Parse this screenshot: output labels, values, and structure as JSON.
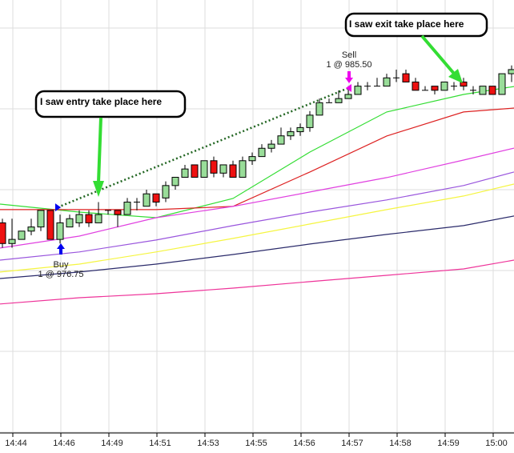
{
  "chart_data": {
    "type": "candlestick",
    "title": "",
    "xlabel": "",
    "ylabel": "",
    "ylim": [
      970.9,
      992.0
    ],
    "grid": true,
    "x_ticks": [
      {
        "label": "14:44",
        "index": 1
      },
      {
        "label": "14:46",
        "index": 6
      },
      {
        "label": "14:49",
        "index": 11
      },
      {
        "label": "14:51",
        "index": 16
      },
      {
        "label": "14:53",
        "index": 21
      },
      {
        "label": "14:55",
        "index": 26
      },
      {
        "label": "14:56",
        "index": 31
      },
      {
        "label": "14:57",
        "index": 36
      },
      {
        "label": "14:58",
        "index": 41
      },
      {
        "label": "14:59",
        "index": 46
      },
      {
        "label": "15:00",
        "index": 51
      }
    ],
    "candles_ohlc": [
      [
        977.75,
        978.0,
        976.25,
        976.5
      ],
      [
        976.5,
        978.0,
        976.25,
        976.75
      ],
      [
        976.75,
        977.25,
        976.75,
        977.25
      ],
      [
        977.25,
        978.0,
        977.0,
        977.5
      ],
      [
        977.5,
        978.5,
        977.25,
        978.5
      ],
      [
        978.5,
        978.5,
        976.75,
        976.75
      ],
      [
        976.75,
        978.25,
        976.5,
        977.75
      ],
      [
        977.5,
        978.25,
        977.5,
        978.0
      ],
      [
        977.75,
        978.5,
        977.5,
        978.25
      ],
      [
        978.25,
        978.5,
        977.5,
        977.75
      ],
      [
        977.75,
        979.0,
        977.75,
        978.25
      ],
      [
        978.5,
        978.5,
        978.25,
        978.5
      ],
      [
        978.5,
        978.5,
        977.5,
        978.25
      ],
      [
        978.25,
        979.25,
        978.25,
        979.0
      ],
      [
        979.0,
        979.25,
        978.5,
        979.0
      ],
      [
        978.75,
        979.75,
        978.75,
        979.5
      ],
      [
        979.5,
        979.5,
        978.75,
        979.0
      ],
      [
        979.25,
        980.25,
        979.0,
        980.0
      ],
      [
        980.0,
        980.5,
        979.75,
        980.5
      ],
      [
        980.5,
        981.25,
        980.5,
        981.0
      ],
      [
        981.25,
        981.25,
        980.5,
        980.5
      ],
      [
        980.5,
        981.5,
        980.5,
        981.5
      ],
      [
        981.5,
        981.75,
        980.5,
        980.75
      ],
      [
        980.75,
        981.25,
        980.5,
        981.25
      ],
      [
        981.25,
        981.5,
        980.5,
        980.5
      ],
      [
        980.5,
        981.75,
        980.5,
        981.5
      ],
      [
        981.5,
        982.0,
        981.25,
        981.75
      ],
      [
        981.75,
        982.5,
        981.75,
        982.25
      ],
      [
        982.25,
        982.75,
        982.0,
        982.5
      ],
      [
        982.5,
        983.5,
        982.5,
        983.0
      ],
      [
        983.0,
        983.5,
        982.75,
        983.25
      ],
      [
        983.25,
        983.75,
        983.0,
        983.5
      ],
      [
        983.5,
        984.5,
        983.25,
        984.25
      ],
      [
        984.25,
        985.25,
        984.25,
        985.0
      ],
      [
        985.0,
        985.25,
        985.0,
        985.0
      ],
      [
        985.0,
        985.75,
        985.0,
        985.25
      ],
      [
        985.25,
        986.0,
        985.25,
        985.5
      ],
      [
        985.5,
        986.25,
        985.5,
        986.0
      ],
      [
        986.0,
        986.25,
        985.75,
        986.0
      ],
      [
        986.0,
        986.5,
        986.0,
        986.0
      ],
      [
        986.0,
        986.75,
        986.0,
        986.5
      ],
      [
        986.5,
        987.0,
        986.25,
        986.5
      ],
      [
        986.75,
        987.0,
        986.25,
        986.25
      ],
      [
        986.25,
        986.5,
        985.75,
        985.75
      ],
      [
        985.75,
        986.0,
        985.75,
        985.75
      ],
      [
        986.0,
        986.0,
        985.5,
        985.75
      ],
      [
        985.75,
        986.25,
        985.75,
        986.25
      ],
      [
        986.0,
        986.25,
        985.75,
        986.0
      ],
      [
        986.25,
        986.5,
        985.75,
        986.0
      ],
      [
        985.75,
        986.0,
        985.5,
        985.75
      ],
      [
        985.5,
        986.0,
        985.5,
        986.0
      ],
      [
        986.0,
        986.0,
        985.5,
        985.5
      ],
      [
        985.5,
        986.75,
        985.5,
        986.75
      ],
      [
        986.75,
        987.25,
        986.25,
        987.0
      ]
    ],
    "moving_averages": {
      "x_index": [
        -0.25,
        8,
        16,
        24,
        32,
        40,
        48,
        53.25
      ],
      "series": [
        {
          "name": "ma-green",
          "color": "#33dd33",
          "values": [
            978.88,
            978.4,
            978.06,
            979.22,
            982.02,
            984.44,
            985.5,
            985.98
          ]
        },
        {
          "name": "ma-red",
          "color": "#dd2222",
          "values": [
            978.55,
            978.55,
            978.55,
            978.74,
            980.82,
            982.99,
            984.44,
            984.68
          ]
        },
        {
          "name": "ma-magenta",
          "color": "#e040e0",
          "values": [
            976.23,
            976.95,
            978.06,
            978.74,
            979.61,
            980.48,
            981.54,
            982.26
          ]
        },
        {
          "name": "ma-purple",
          "color": "#9955dd",
          "values": [
            975.5,
            975.99,
            976.71,
            977.58,
            978.4,
            979.13,
            980.0,
            980.82
          ]
        },
        {
          "name": "ma-yellow",
          "color": "#f5f540",
          "values": [
            974.78,
            975.26,
            975.99,
            976.81,
            977.68,
            978.55,
            979.37,
            980.09
          ]
        },
        {
          "name": "ma-navy",
          "color": "#2a2a6a",
          "values": [
            974.39,
            974.78,
            975.26,
            975.84,
            976.47,
            977.05,
            977.58,
            978.16
          ]
        },
        {
          "name": "ma-pink",
          "color": "#ee3399",
          "values": [
            972.85,
            973.23,
            973.47,
            973.81,
            974.2,
            974.58,
            974.97,
            975.5
          ]
        }
      ]
    },
    "trades": {
      "buy": {
        "label": "Buy",
        "detail": "1 @ 976.75",
        "price": 976.75,
        "index": 6
      },
      "sell": {
        "label": "Sell",
        "detail": "1 @ 985.50",
        "price": 985.5,
        "index": 36
      }
    },
    "annotations": {
      "entry": "I saw entry take place here",
      "exit": "I saw exit take place here"
    },
    "colors": {
      "up": "#99dd99",
      "down": "#ee1111",
      "grid": "#dddddd",
      "trade_line": "#226622",
      "buy": "#0000ee",
      "sell": "#ee00ee",
      "arrow": "#33dd33"
    }
  }
}
